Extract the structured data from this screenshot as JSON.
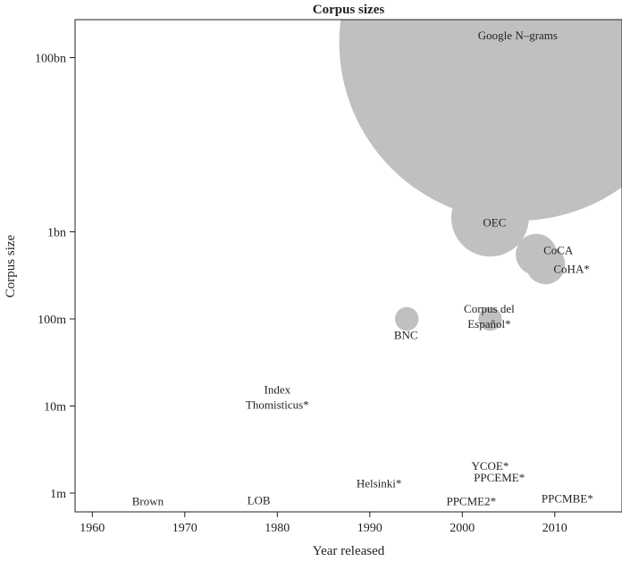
{
  "chart_data": {
    "type": "scatter",
    "title": "Corpus sizes",
    "xlabel": "Year released",
    "ylabel": "Corpus size",
    "x_scale": "linear",
    "y_scale": "log",
    "xlim": [
      1957,
      2017
    ],
    "ylim": [
      500000,
      320000000000
    ],
    "x_ticks": [
      {
        "value": 1960,
        "label": "1960"
      },
      {
        "value": 1970,
        "label": "1970"
      },
      {
        "value": 1980,
        "label": "1980"
      },
      {
        "value": 1990,
        "label": "1990"
      },
      {
        "value": 2000,
        "label": "2000"
      },
      {
        "value": 2010,
        "label": "2010"
      }
    ],
    "y_ticks": [
      {
        "value": 1000000,
        "label": "1m"
      },
      {
        "value": 10000000,
        "label": "10m"
      },
      {
        "value": 100000000,
        "label": "100m"
      },
      {
        "value": 1000000000,
        "label": "1bn"
      },
      {
        "value": 100000000000,
        "label": "100bn"
      }
    ],
    "grid": false,
    "marker_color": "#c0c0c2",
    "points": [
      {
        "label_lines": [
          "Google N–grams"
        ],
        "x": 2006,
        "y": 150000000000,
        "size": 155000000000
      },
      {
        "label_lines": [
          "OEC"
        ],
        "x": 2003,
        "y": 1450000000,
        "size": 2500000000
      },
      {
        "label_lines": [
          "CoCA"
        ],
        "x": 2008,
        "y": 550000000,
        "size": 450000000
      },
      {
        "label_lines": [
          "CoHA*"
        ],
        "x": 2009,
        "y": 420000000,
        "size": 400000000
      },
      {
        "label_lines": [
          "BNC"
        ],
        "x": 1994,
        "y": 100000000,
        "size": 100000000
      },
      {
        "label_lines": [
          "Corpus del",
          "Español*"
        ],
        "x": 2003,
        "y": 100000000,
        "size": 100000000
      },
      {
        "label_lines": [
          "Index",
          "Thomisticus*"
        ],
        "x": 1980,
        "y": 10000000,
        "size": 10000000
      },
      {
        "label_lines": [
          "Helsinki*"
        ],
        "x": 1991,
        "y": 1500000,
        "size": 1500000
      },
      {
        "label_lines": [
          "YCOE*"
        ],
        "x": 2003,
        "y": 2300000,
        "size": 1500000
      },
      {
        "label_lines": [
          "PPCEME*"
        ],
        "x": 2004,
        "y": 1700000,
        "size": 1700000
      },
      {
        "label_lines": [
          "PPCME2*"
        ],
        "x": 2000,
        "y": 1000000,
        "size": 1000000
      },
      {
        "label_lines": [
          "PPCMBE*"
        ],
        "x": 2010,
        "y": 1000000,
        "size": 1000000
      },
      {
        "label_lines": [
          "Brown"
        ],
        "x": 1966,
        "y": 1000000,
        "size": 1000000
      },
      {
        "label_lines": [
          "LOB"
        ],
        "x": 1978,
        "y": 1000000,
        "size": 1000000
      }
    ]
  }
}
